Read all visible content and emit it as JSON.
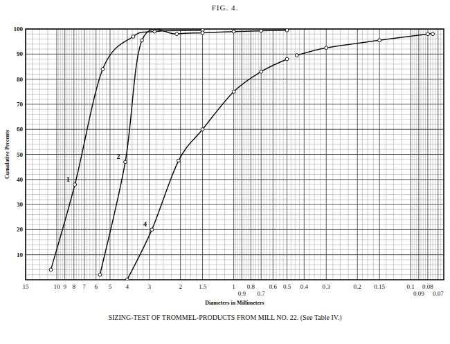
{
  "chart_data": {
    "type": "line",
    "title": "FIG. 4.",
    "subtitle": "SIZING-TEST OF TROMMEL-PRODUCTS FROM MILL NO. 22. (See Table IV.)",
    "x_label": "Diameters in Millimeters",
    "y_label": "Cumulative Percents",
    "log": "x",
    "grid": true,
    "marker": "circle",
    "xlim": [
      15,
      0.065
    ],
    "xticks": [
      15,
      10,
      9,
      8,
      7,
      6,
      5,
      4,
      3,
      2,
      1.5,
      1,
      0.9,
      0.8,
      0.7,
      0.6,
      0.5,
      0.4,
      0.3,
      0.2,
      0.15,
      0.1,
      0.09,
      0.08,
      0.07
    ],
    "ylim": [
      0,
      100
    ],
    "yticks": [
      10,
      20,
      30,
      40,
      50,
      60,
      70,
      80,
      90,
      100
    ],
    "series": [
      {
        "name": "1",
        "color": "#111111",
        "x": [
          10.8,
          7.9,
          5.5,
          3.7,
          2.8,
          1.5
        ],
        "values": [
          4,
          38,
          84,
          97,
          99,
          99.5
        ]
      },
      {
        "name": "2",
        "color": "#111111",
        "x": [
          5.7,
          4.1,
          3.3,
          2.1,
          1.5,
          1,
          0.7,
          0.5
        ],
        "values": [
          2,
          47,
          95.5,
          98,
          98.5,
          99,
          99.3,
          99.5
        ]
      },
      {
        "name": "4",
        "color": "#111111",
        "x": [
          4,
          2.9,
          2.05,
          1.5,
          1,
          0.7,
          0.5,
          null,
          0.44,
          0.3,
          0.15,
          0.08,
          0.075
        ],
        "values": [
          0,
          20,
          47.5,
          60,
          75,
          83,
          88,
          null,
          89.5,
          92.5,
          95.5,
          98,
          98
        ]
      }
    ]
  }
}
